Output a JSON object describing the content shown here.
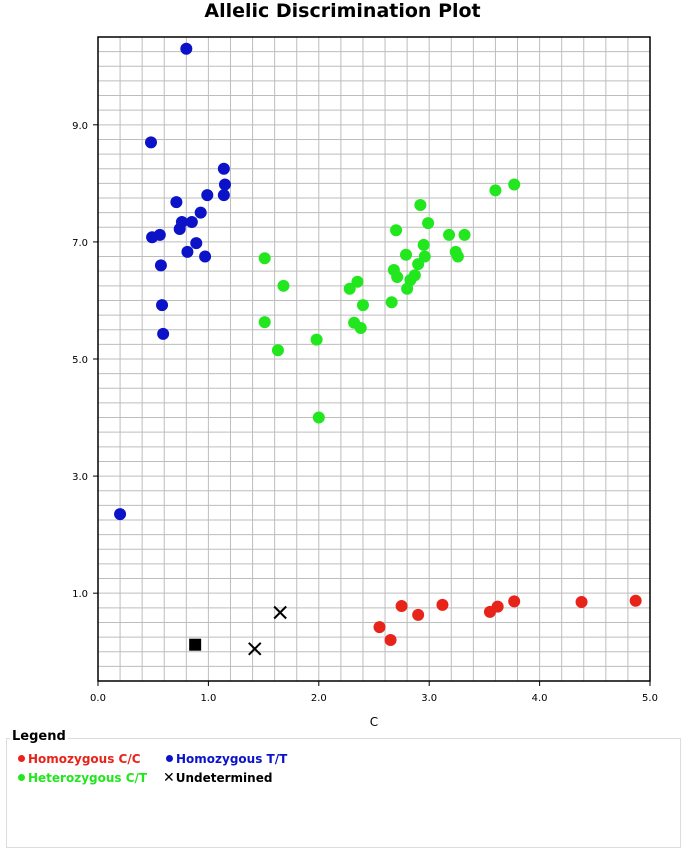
{
  "chart_data": {
    "type": "scatter",
    "title": "Allelic Discrimination Plot",
    "xlabel": "C",
    "ylabel": "",
    "xlim": [
      0.0,
      5.0
    ],
    "ylim": [
      -0.5,
      10.5
    ],
    "x_ticks": [
      "0.0",
      "1.0",
      "2.0",
      "3.0",
      "4.0",
      "5.0"
    ],
    "y_ticks": [
      "1.0",
      "3.0",
      "5.0",
      "7.0",
      "9.0"
    ],
    "grid": true,
    "series": [
      {
        "name": "Homozygous C/C",
        "color": "#e8231a",
        "marker": "circle",
        "points": [
          [
            2.55,
            0.42
          ],
          [
            2.65,
            0.2
          ],
          [
            2.75,
            0.78
          ],
          [
            2.9,
            0.63
          ],
          [
            3.12,
            0.8
          ],
          [
            3.55,
            0.68
          ],
          [
            3.62,
            0.77
          ],
          [
            3.77,
            0.86
          ],
          [
            4.38,
            0.85
          ],
          [
            4.87,
            0.87
          ]
        ]
      },
      {
        "name": "Homozygous T/T",
        "color": "#0b12c8",
        "marker": "circle",
        "points": [
          [
            0.2,
            2.35
          ],
          [
            0.48,
            8.7
          ],
          [
            0.8,
            10.3
          ],
          [
            0.49,
            7.08
          ],
          [
            0.56,
            7.12
          ],
          [
            0.57,
            6.6
          ],
          [
            0.58,
            5.92
          ],
          [
            0.59,
            5.43
          ],
          [
            0.71,
            7.68
          ],
          [
            0.74,
            7.22
          ],
          [
            0.76,
            7.34
          ],
          [
            0.81,
            6.83
          ],
          [
            0.85,
            7.34
          ],
          [
            0.89,
            6.98
          ],
          [
            0.93,
            7.5
          ],
          [
            0.97,
            6.75
          ],
          [
            0.99,
            7.8
          ],
          [
            1.14,
            8.25
          ],
          [
            1.15,
            7.98
          ],
          [
            1.14,
            7.8
          ]
        ]
      },
      {
        "name": "Heterozygous C/T",
        "color": "#22e61e",
        "marker": "circle",
        "points": [
          [
            1.51,
            6.72
          ],
          [
            1.51,
            5.63
          ],
          [
            1.63,
            5.15
          ],
          [
            1.68,
            6.25
          ],
          [
            1.98,
            5.33
          ],
          [
            2.0,
            4.0
          ],
          [
            2.28,
            6.2
          ],
          [
            2.32,
            5.62
          ],
          [
            2.35,
            6.32
          ],
          [
            2.38,
            5.53
          ],
          [
            2.4,
            5.92
          ],
          [
            2.66,
            5.97
          ],
          [
            2.68,
            6.52
          ],
          [
            2.7,
            7.2
          ],
          [
            2.71,
            6.4
          ],
          [
            2.79,
            6.78
          ],
          [
            2.8,
            6.2
          ],
          [
            2.83,
            6.35
          ],
          [
            2.87,
            6.43
          ],
          [
            2.9,
            6.62
          ],
          [
            2.92,
            7.63
          ],
          [
            2.95,
            6.95
          ],
          [
            2.96,
            6.75
          ],
          [
            2.99,
            7.32
          ],
          [
            3.18,
            7.12
          ],
          [
            3.24,
            6.83
          ],
          [
            3.26,
            6.75
          ],
          [
            3.32,
            7.12
          ],
          [
            3.6,
            7.88
          ],
          [
            3.77,
            7.98
          ]
        ]
      },
      {
        "name": "Undetermined",
        "color": "#000000",
        "marker": "x",
        "points": [
          [
            1.42,
            0.05
          ],
          [
            1.65,
            0.67
          ]
        ]
      },
      {
        "name": "",
        "color": "#000000",
        "marker": "square",
        "points": [
          [
            0.88,
            0.12
          ]
        ]
      }
    ]
  },
  "legend": {
    "title": "Legend",
    "items": [
      {
        "label": "Homozygous C/C",
        "color": "#e8231a",
        "marker": "dot"
      },
      {
        "label": "Homozygous T/T",
        "color": "#0b12c8",
        "marker": "dot"
      },
      {
        "label": "Heterozygous C/T",
        "color": "#22e61e",
        "marker": "dot"
      },
      {
        "label": "Undetermined",
        "color": "#000000",
        "marker": "x"
      }
    ]
  }
}
